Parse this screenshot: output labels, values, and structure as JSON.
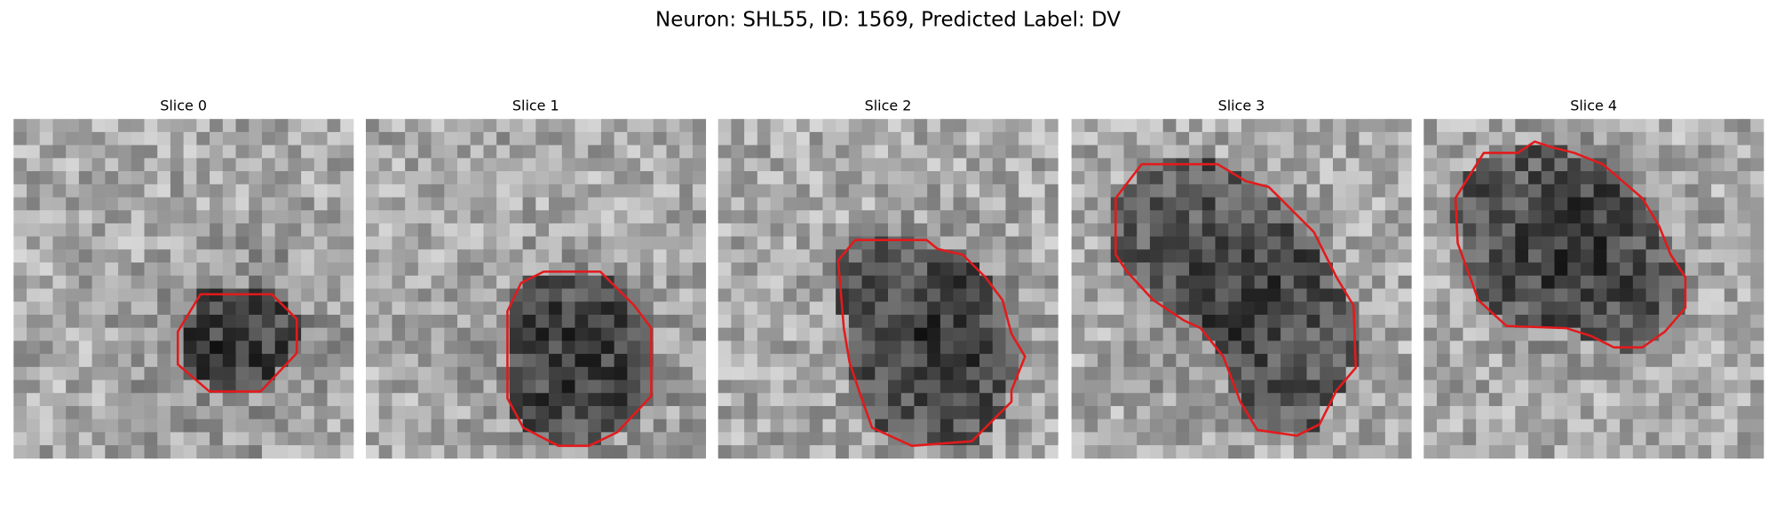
{
  "title": "Neuron: SHL55, ID: 1569, Predicted Label: DV",
  "panels": [
    {
      "title": "Slice 0"
    },
    {
      "title": "Slice 1"
    },
    {
      "title": "Slice 2"
    },
    {
      "title": "Slice 3"
    },
    {
      "title": "Slice 4"
    }
  ]
}
